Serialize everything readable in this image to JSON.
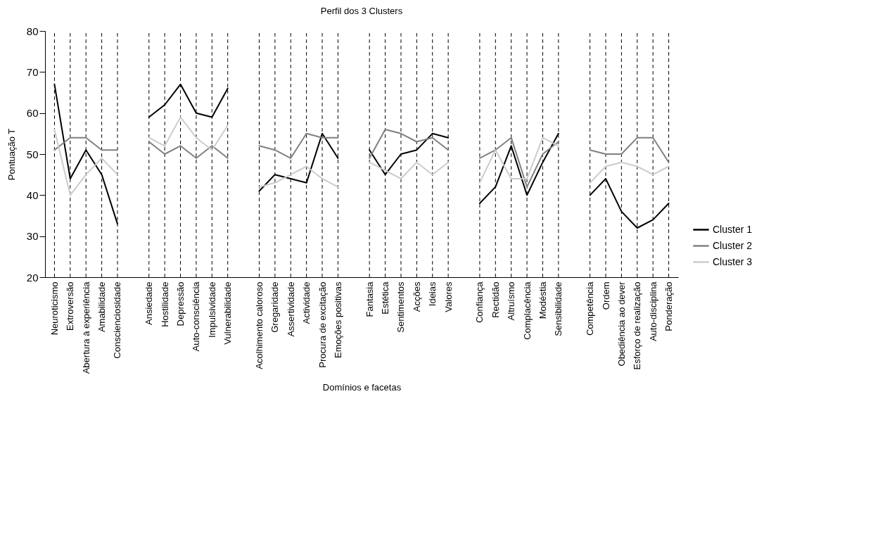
{
  "chart_data": {
    "type": "line",
    "title": "Perfil dos 3 Clusters",
    "xlabel": "Domínios e facetas",
    "ylabel": "Pontuação T",
    "categories": [
      "Neuroticismo",
      "Extroversão",
      "Abertura à experiência",
      "Amabilidade",
      "Conscienciosidade",
      null,
      "Ansiedade",
      "Hostilidade",
      "Depressão",
      "Auto-consciência",
      "Impulsividade",
      "Vulnerabilidade",
      null,
      "Acolhimento caloroso",
      "Gregaridade",
      "Assertividade",
      "Actividade",
      "Procura de excitação",
      "Emoções positivas",
      null,
      "Fantasia",
      "Estética",
      "Sentimentos",
      "Acções",
      "Ideias",
      "Valores",
      null,
      "Confiança",
      "Rectidão",
      "Altruísmo",
      "Complacência",
      "Modéstia",
      "Sensibilidade",
      null,
      "Competência",
      "Ordem",
      "Obediência ao dever",
      "Esforço de realização",
      "Auto-disciplina",
      "Ponderação"
    ],
    "series": [
      {
        "name": "Cluster 1",
        "color": "#000000",
        "values": [
          67,
          44,
          51,
          45,
          33,
          null,
          59,
          62,
          67,
          60,
          59,
          66,
          null,
          41,
          45,
          44,
          43,
          55,
          49,
          null,
          51,
          45,
          50,
          51,
          55,
          54,
          null,
          38,
          42,
          52,
          40,
          48,
          55,
          null,
          40,
          44,
          36,
          32,
          34,
          38
        ]
      },
      {
        "name": "Cluster 2",
        "color": "#808080",
        "values": [
          51,
          54,
          54,
          51,
          51,
          null,
          53,
          50,
          52,
          49,
          52,
          49,
          null,
          52,
          51,
          49,
          55,
          54,
          54,
          null,
          49,
          56,
          55,
          53,
          54,
          51,
          null,
          49,
          51,
          54,
          42,
          50,
          53,
          null,
          51,
          50,
          50,
          54,
          54,
          48
        ]
      },
      {
        "name": "Cluster 3",
        "color": "#cccccc",
        "values": [
          56,
          40,
          45,
          49,
          45,
          null,
          54,
          52,
          59,
          54,
          51,
          57,
          null,
          42,
          43,
          45,
          47,
          44,
          42,
          null,
          48,
          46,
          44,
          48,
          45,
          48,
          null,
          43,
          51,
          44,
          44,
          54,
          52,
          null,
          43,
          47,
          48,
          47,
          45,
          47
        ]
      }
    ],
    "ylim": [
      20,
      80
    ],
    "yticks": [
      20,
      30,
      40,
      50,
      60,
      70,
      80
    ],
    "grid": "x",
    "legend": "bottom right",
    "marker": "none",
    "line_style": "solid"
  }
}
